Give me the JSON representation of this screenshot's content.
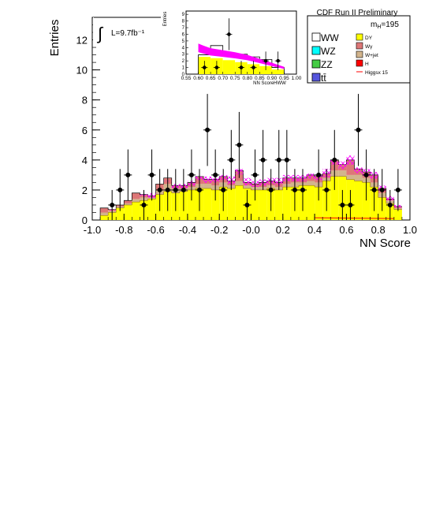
{
  "chart_data": [
    {
      "type": "bar",
      "panel": "main",
      "xlabel": "NN Score",
      "ylabel": "Entries",
      "xlim": [
        -1.0,
        1.0
      ],
      "ylim": [
        0,
        13.5
      ],
      "x_ticks": [
        "-1.0",
        "-0.8",
        "-0.6",
        "-0.4",
        "-0.2",
        "-0.0",
        "0.2",
        "0.4",
        "0.6",
        "0.8",
        "1.0"
      ],
      "y_ticks": [
        "0",
        "2",
        "4",
        "6",
        "8",
        "10",
        "12"
      ],
      "bin_edges": [
        -0.95,
        -0.9,
        -0.85,
        -0.8,
        -0.75,
        -0.7,
        -0.65,
        -0.6,
        -0.55,
        -0.5,
        -0.45,
        -0.4,
        -0.35,
        -0.3,
        -0.25,
        -0.2,
        -0.15,
        -0.1,
        -0.05,
        0.0,
        0.05,
        0.1,
        0.15,
        0.2,
        0.25,
        0.3,
        0.35,
        0.4,
        0.45,
        0.5,
        0.55,
        0.6,
        0.65,
        0.7,
        0.75,
        0.8,
        0.85,
        0.9,
        0.95
      ],
      "series": [
        {
          "name": "DY",
          "color": "#ffff00",
          "values": [
            0.3,
            0.5,
            0.8,
            1.0,
            1.2,
            1.3,
            1.4,
            1.7,
            1.9,
            1.8,
            1.9,
            2.0,
            2.1,
            2.1,
            2.0,
            2.2,
            2.1,
            2.3,
            2.1,
            2.0,
            2.0,
            2.1,
            2.0,
            2.2,
            2.2,
            2.3,
            2.3,
            2.2,
            2.6,
            2.9,
            2.9,
            2.7,
            2.6,
            2.5,
            2.2,
            1.5,
            1.1,
            0.7
          ]
        },
        {
          "name": "W+jet",
          "color": "#d2b48c",
          "values": [
            0.2,
            0.1,
            0.1,
            0.1,
            0.2,
            0.2,
            0.1,
            0.3,
            0.5,
            0.3,
            0.2,
            0.2,
            0.3,
            0.3,
            0.3,
            0.3,
            0.2,
            0.3,
            0.2,
            0.2,
            0.2,
            0.2,
            0.2,
            0.2,
            0.3,
            0.2,
            0.3,
            0.3,
            0.2,
            0.4,
            0.4,
            0.3,
            0.4,
            0.3,
            0.3,
            0.3,
            0.2,
            0.1
          ]
        },
        {
          "name": "Wγ",
          "color": "#dd7777",
          "values": [
            0.3,
            0.1,
            0.1,
            0.2,
            0.4,
            0.2,
            0.1,
            0.4,
            0.4,
            0.2,
            0.2,
            0.3,
            0.5,
            0.3,
            0.4,
            0.4,
            0.3,
            0.7,
            0.2,
            0.2,
            0.3,
            0.3,
            0.3,
            0.4,
            0.3,
            0.3,
            0.4,
            0.4,
            0.3,
            0.7,
            0.4,
            1.0,
            0.4,
            0.4,
            0.5,
            0.3,
            0.1,
            0.1
          ]
        }
      ],
      "signal": {
        "name": "Higgsx 15",
        "color": "#ff00ff",
        "values": [
          0.4,
          0.7,
          0.9,
          1.2,
          1.5,
          1.7,
          1.8,
          2.2,
          2.6,
          2.4,
          2.4,
          2.6,
          2.9,
          2.9,
          2.8,
          3.0,
          2.9,
          3.4,
          2.8,
          2.6,
          2.7,
          2.8,
          2.8,
          3.0,
          3.0,
          3.0,
          3.1,
          3.0,
          3.4,
          4.0,
          3.9,
          4.3,
          3.5,
          3.4,
          3.2,
          2.3,
          1.6,
          1.0
        ]
      },
      "data_points": [
        {
          "x": -0.875,
          "y": 1,
          "err": 1.0
        },
        {
          "x": -0.825,
          "y": 2,
          "err": 1.4
        },
        {
          "x": -0.775,
          "y": 3,
          "err": 1.7
        },
        {
          "x": -0.725,
          "y": 0,
          "err": 0
        },
        {
          "x": -0.675,
          "y": 1,
          "err": 1.0
        },
        {
          "x": -0.625,
          "y": 3,
          "err": 1.7
        },
        {
          "x": -0.575,
          "y": 2,
          "err": 1.4
        },
        {
          "x": -0.525,
          "y": 2,
          "err": 1.4
        },
        {
          "x": -0.475,
          "y": 2,
          "err": 1.4
        },
        {
          "x": -0.425,
          "y": 2,
          "err": 1.4
        },
        {
          "x": -0.375,
          "y": 3,
          "err": 1.7
        },
        {
          "x": -0.325,
          "y": 2,
          "err": 1.4
        },
        {
          "x": -0.275,
          "y": 6,
          "err": 2.4
        },
        {
          "x": -0.225,
          "y": 3,
          "err": 1.7
        },
        {
          "x": -0.175,
          "y": 2,
          "err": 1.4
        },
        {
          "x": -0.125,
          "y": 4,
          "err": 2.0
        },
        {
          "x": -0.075,
          "y": 5,
          "err": 2.2
        },
        {
          "x": -0.025,
          "y": 1,
          "err": 1.0
        },
        {
          "x": 0.025,
          "y": 3,
          "err": 1.7
        },
        {
          "x": 0.075,
          "y": 4,
          "err": 2.0
        },
        {
          "x": 0.125,
          "y": 2,
          "err": 1.4
        },
        {
          "x": 0.175,
          "y": 4,
          "err": 2.0
        },
        {
          "x": 0.225,
          "y": 4,
          "err": 2.0
        },
        {
          "x": 0.275,
          "y": 2,
          "err": 1.4
        },
        {
          "x": 0.325,
          "y": 2,
          "err": 1.4
        },
        {
          "x": 0.375,
          "y": 0,
          "err": 0
        },
        {
          "x": 0.425,
          "y": 3,
          "err": 1.7
        },
        {
          "x": 0.475,
          "y": 2,
          "err": 1.4
        },
        {
          "x": 0.525,
          "y": 4,
          "err": 2.0
        },
        {
          "x": 0.575,
          "y": 1,
          "err": 1.0
        },
        {
          "x": 0.625,
          "y": 1,
          "err": 1.0
        },
        {
          "x": 0.675,
          "y": 6,
          "err": 2.4
        },
        {
          "x": 0.725,
          "y": 3,
          "err": 1.7
        },
        {
          "x": 0.775,
          "y": 2,
          "err": 1.4
        },
        {
          "x": 0.825,
          "y": 2,
          "err": 1.4
        },
        {
          "x": 0.875,
          "y": 1,
          "err": 1.0
        },
        {
          "x": 0.925,
          "y": 2,
          "err": 1.4
        }
      ],
      "legend": [
        "WW",
        "WZ",
        "ZZ",
        "tt̄",
        "DY",
        "Wγ",
        "W+jet",
        "H",
        "Higgsx 15"
      ],
      "legend_colors": {
        "WW": "#ffffff",
        "WZ": "#00ffff",
        "ZZ": "#44cc44",
        "tt̄": "#5555dd",
        "DY": "#ffff00",
        "Wγ": "#dd7777",
        "W+jet": "#d2b48c",
        "H": "#ff0000",
        "Higgsx 15": "#ff0000"
      }
    },
    {
      "type": "bar",
      "panel": "inset",
      "xlabel": "NN ScoreHWW",
      "ylabel": "Entries",
      "xlim": [
        0.55,
        1.0
      ],
      "ylim": [
        0,
        9.5
      ],
      "x_ticks": [
        "0.55",
        "0.60",
        "0.65",
        "0.70",
        "0.75",
        "0.80",
        "0.85",
        "0.90",
        "0.95",
        "1.00"
      ],
      "y_ticks": [
        "0",
        "1",
        "2",
        "3",
        "4",
        "5",
        "6",
        "7",
        "8",
        "9"
      ],
      "bin_edges": [
        0.6,
        0.65,
        0.7,
        0.75,
        0.8,
        0.85,
        0.9,
        0.95
      ],
      "background_total": [
        2.9,
        4.3,
        3.0,
        3.0,
        2.6,
        2.2,
        1.0
      ],
      "dy_values": [
        2.6,
        2.4,
        2.1,
        1.8,
        1.5,
        1.2,
        0.7
      ],
      "signal_curve": [
        [
          0.6,
          4.6
        ],
        [
          0.62,
          4.3
        ],
        [
          0.65,
          3.9
        ],
        [
          0.7,
          3.6
        ],
        [
          0.75,
          3.3
        ],
        [
          0.8,
          2.9
        ],
        [
          0.85,
          2.3
        ],
        [
          0.9,
          1.7
        ],
        [
          0.95,
          1.1
        ]
      ],
      "data_points": [
        {
          "x": 0.625,
          "y": 1,
          "err": 1.0
        },
        {
          "x": 0.675,
          "y": 1,
          "err": 1.0
        },
        {
          "x": 0.725,
          "y": 6,
          "err": 2.4
        },
        {
          "x": 0.775,
          "y": 1,
          "err": 1.0
        },
        {
          "x": 0.825,
          "y": 1,
          "err": 1.0
        },
        {
          "x": 0.875,
          "y": 2,
          "err": 1.4
        },
        {
          "x": 0.925,
          "y": 2,
          "err": 1.4
        }
      ]
    }
  ],
  "annotations": {
    "luminosity": "L=9.7fb⁻¹",
    "mass_label": "mH=195",
    "experiment": "CDF Run II Preliminary"
  },
  "colors": {
    "hatch": "#ff00ff",
    "signal_line": "#ff0000"
  }
}
